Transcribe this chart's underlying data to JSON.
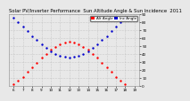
{
  "title": "Solar PV/Inverter Performance  Sun Altitude Angle & Sun Incidence  2011",
  "legend_labels": [
    "Alt Angle",
    "Inc Angle"
  ],
  "legend_colors": [
    "#ff0000",
    "#0000cc"
  ],
  "bg_color": "#e8e8e8",
  "plot_bg": "#e8e8e8",
  "grid_color": "#999999",
  "x_times": [
    6.0,
    6.5,
    7.0,
    7.5,
    8.0,
    8.5,
    9.0,
    9.5,
    10.0,
    10.5,
    11.0,
    11.5,
    12.0,
    12.5,
    13.0,
    13.5,
    14.0,
    14.5,
    15.0,
    15.5,
    16.0,
    16.5,
    17.0,
    17.5,
    18.0
  ],
  "alt_angle": [
    2,
    6,
    11,
    17,
    23,
    29,
    35,
    40,
    45,
    49,
    52,
    54,
    55,
    54,
    52,
    49,
    45,
    40,
    35,
    29,
    23,
    17,
    11,
    6,
    2
  ],
  "inc_angle": [
    85,
    80,
    74,
    68,
    62,
    57,
    52,
    47,
    43,
    40,
    37,
    36,
    35,
    36,
    37,
    40,
    43,
    47,
    52,
    57,
    62,
    68,
    74,
    80,
    85
  ],
  "ylim": [
    0,
    90
  ],
  "xlim": [
    5.5,
    19.5
  ],
  "tick_color": "#000000",
  "title_color": "#000000",
  "title_fontsize": 3.8,
  "axis_fontsize": 3.0,
  "dot_size": 1.5,
  "x_ticks": [
    6,
    7,
    8,
    9,
    10,
    11,
    12,
    13,
    14,
    15,
    16,
    17,
    18,
    19
  ],
  "y_ticks": [
    0,
    10,
    20,
    30,
    40,
    50,
    60,
    70,
    80,
    90
  ],
  "legend_box_colors": [
    "#ff0000",
    "#0000cc"
  ],
  "legend_box_labels": [
    "Alt Angle",
    "Inc Angle"
  ]
}
